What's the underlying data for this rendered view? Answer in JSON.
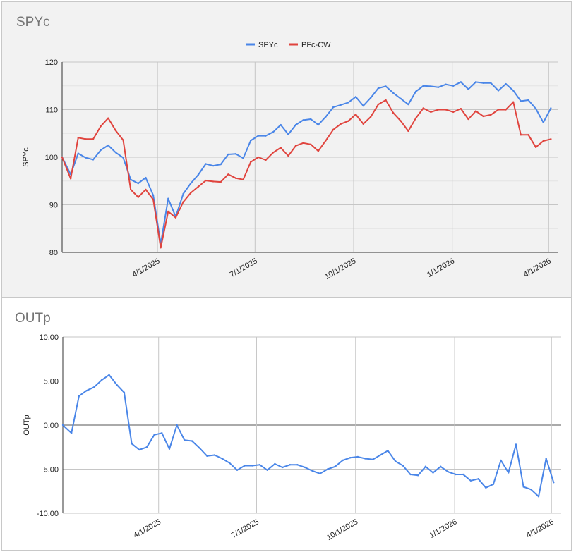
{
  "chart_data": [
    {
      "type": "line",
      "title": "SPYc",
      "ylabel": "SPYc",
      "ylim": [
        80,
        120
      ],
      "yticks": [
        80,
        90,
        100,
        110,
        120
      ],
      "xlim": [
        "2025-01-02",
        "2026-04-10"
      ],
      "xticks": [
        {
          "label": "4/1/2025",
          "date": "2025-04-01"
        },
        {
          "label": "7/1/2025",
          "date": "2025-07-01"
        },
        {
          "label": "10/1/2025",
          "date": "2025-10-01"
        },
        {
          "label": "1/1/2026",
          "date": "2026-01-01"
        },
        {
          "label": "4/1/2026",
          "date": "2026-04-01"
        }
      ],
      "grid": true,
      "legend_position": "top",
      "series": [
        {
          "name": "SPYc",
          "color": "#4a86e8",
          "points": [
            [
              "2025-01-02",
              100.0
            ],
            [
              "2025-01-10",
              96.4
            ],
            [
              "2025-01-17",
              100.8
            ],
            [
              "2025-01-24",
              99.9
            ],
            [
              "2025-01-31",
              99.5
            ],
            [
              "2025-02-07",
              101.5
            ],
            [
              "2025-02-14",
              102.5
            ],
            [
              "2025-02-21",
              101.0
            ],
            [
              "2025-02-28",
              99.9
            ],
            [
              "2025-03-07",
              95.3
            ],
            [
              "2025-03-14",
              94.5
            ],
            [
              "2025-03-21",
              95.7
            ],
            [
              "2025-03-28",
              92.0
            ],
            [
              "2025-04-04",
              81.8
            ],
            [
              "2025-04-11",
              91.3
            ],
            [
              "2025-04-18",
              87.5
            ],
            [
              "2025-04-25",
              92.3
            ],
            [
              "2025-05-02",
              94.5
            ],
            [
              "2025-05-09",
              96.3
            ],
            [
              "2025-05-16",
              98.6
            ],
            [
              "2025-05-23",
              98.2
            ],
            [
              "2025-05-30",
              98.5
            ],
            [
              "2025-06-06",
              100.6
            ],
            [
              "2025-06-13",
              100.7
            ],
            [
              "2025-06-20",
              99.8
            ],
            [
              "2025-06-27",
              103.5
            ],
            [
              "2025-07-04",
              104.5
            ],
            [
              "2025-07-11",
              104.5
            ],
            [
              "2025-07-18",
              105.3
            ],
            [
              "2025-07-25",
              106.8
            ],
            [
              "2025-08-01",
              104.8
            ],
            [
              "2025-08-08",
              106.8
            ],
            [
              "2025-08-15",
              107.8
            ],
            [
              "2025-08-22",
              108.0
            ],
            [
              "2025-08-29",
              106.8
            ],
            [
              "2025-09-05",
              108.5
            ],
            [
              "2025-09-12",
              110.5
            ],
            [
              "2025-09-19",
              111.0
            ],
            [
              "2025-09-26",
              111.5
            ],
            [
              "2025-10-03",
              112.7
            ],
            [
              "2025-10-10",
              110.8
            ],
            [
              "2025-10-17",
              112.5
            ],
            [
              "2025-10-24",
              114.5
            ],
            [
              "2025-10-31",
              114.9
            ],
            [
              "2025-11-07",
              113.5
            ],
            [
              "2025-11-14",
              112.3
            ],
            [
              "2025-11-21",
              111.1
            ],
            [
              "2025-11-28",
              113.8
            ],
            [
              "2025-12-05",
              115.0
            ],
            [
              "2025-12-12",
              114.9
            ],
            [
              "2025-12-19",
              114.7
            ],
            [
              "2025-12-26",
              115.3
            ],
            [
              "2026-01-02",
              115.0
            ],
            [
              "2026-01-09",
              115.8
            ],
            [
              "2026-01-16",
              114.3
            ],
            [
              "2026-01-23",
              115.8
            ],
            [
              "2026-01-30",
              115.6
            ],
            [
              "2026-02-06",
              115.6
            ],
            [
              "2026-02-13",
              114.0
            ],
            [
              "2026-02-20",
              115.4
            ],
            [
              "2026-02-27",
              114.0
            ],
            [
              "2026-03-06",
              111.8
            ],
            [
              "2026-03-13",
              112.0
            ],
            [
              "2026-03-20",
              110.2
            ],
            [
              "2026-03-27",
              107.3
            ],
            [
              "2026-04-03",
              110.3
            ]
          ]
        },
        {
          "name": "PFc-CW",
          "color": "#e0443e",
          "points": [
            [
              "2025-01-02",
              100.0
            ],
            [
              "2025-01-10",
              95.5
            ],
            [
              "2025-01-17",
              104.1
            ],
            [
              "2025-01-24",
              103.8
            ],
            [
              "2025-01-31",
              103.8
            ],
            [
              "2025-02-07",
              106.5
            ],
            [
              "2025-02-14",
              108.2
            ],
            [
              "2025-02-21",
              105.6
            ],
            [
              "2025-02-28",
              103.6
            ],
            [
              "2025-03-07",
              93.2
            ],
            [
              "2025-03-14",
              91.6
            ],
            [
              "2025-03-21",
              93.2
            ],
            [
              "2025-03-28",
              91.1
            ],
            [
              "2025-04-04",
              81.0
            ],
            [
              "2025-04-11",
              88.6
            ],
            [
              "2025-04-18",
              87.3
            ],
            [
              "2025-04-25",
              90.6
            ],
            [
              "2025-05-02",
              92.5
            ],
            [
              "2025-05-09",
              93.8
            ],
            [
              "2025-05-16",
              95.1
            ],
            [
              "2025-05-23",
              94.9
            ],
            [
              "2025-05-30",
              94.8
            ],
            [
              "2025-06-06",
              96.4
            ],
            [
              "2025-06-13",
              95.6
            ],
            [
              "2025-06-20",
              95.3
            ],
            [
              "2025-06-27",
              99.0
            ],
            [
              "2025-07-04",
              100.0
            ],
            [
              "2025-07-11",
              99.4
            ],
            [
              "2025-07-18",
              101.0
            ],
            [
              "2025-07-25",
              102.0
            ],
            [
              "2025-08-01",
              100.3
            ],
            [
              "2025-08-08",
              102.4
            ],
            [
              "2025-08-15",
              103.0
            ],
            [
              "2025-08-22",
              102.7
            ],
            [
              "2025-08-29",
              101.3
            ],
            [
              "2025-09-05",
              103.5
            ],
            [
              "2025-09-12",
              105.8
            ],
            [
              "2025-09-19",
              107.0
            ],
            [
              "2025-09-26",
              107.6
            ],
            [
              "2025-10-03",
              109.0
            ],
            [
              "2025-10-10",
              107.0
            ],
            [
              "2025-10-17",
              108.5
            ],
            [
              "2025-10-24",
              111.1
            ],
            [
              "2025-10-31",
              112.0
            ],
            [
              "2025-11-07",
              109.3
            ],
            [
              "2025-11-14",
              107.6
            ],
            [
              "2025-11-21",
              105.5
            ],
            [
              "2025-11-28",
              108.2
            ],
            [
              "2025-12-05",
              110.3
            ],
            [
              "2025-12-12",
              109.5
            ],
            [
              "2025-12-19",
              110.0
            ],
            [
              "2025-12-26",
              110.0
            ],
            [
              "2026-01-02",
              109.5
            ],
            [
              "2026-01-09",
              110.2
            ],
            [
              "2026-01-16",
              108.0
            ],
            [
              "2026-01-23",
              109.7
            ],
            [
              "2026-01-30",
              108.6
            ],
            [
              "2026-02-06",
              108.9
            ],
            [
              "2026-02-13",
              110.0
            ],
            [
              "2026-02-20",
              110.0
            ],
            [
              "2026-02-27",
              111.6
            ],
            [
              "2026-03-06",
              104.7
            ],
            [
              "2026-03-13",
              104.7
            ],
            [
              "2026-03-20",
              102.1
            ],
            [
              "2026-03-27",
              103.4
            ],
            [
              "2026-04-03",
              103.8
            ]
          ]
        }
      ]
    },
    {
      "type": "line",
      "title": "OUTp",
      "ylabel": "OUTp",
      "ylim": [
        -10,
        10
      ],
      "yticks": [
        -10,
        -5,
        0,
        5,
        10
      ],
      "ytick_labels": [
        "-10.00",
        "-5.00",
        "0.00",
        "5.00",
        "10.00"
      ],
      "xlim": [
        "2025-01-02",
        "2026-04-10"
      ],
      "xticks": [
        {
          "label": "4/1/2025",
          "date": "2025-04-01"
        },
        {
          "label": "7/1/2025",
          "date": "2025-07-01"
        },
        {
          "label": "10/1/2025",
          "date": "2025-10-01"
        },
        {
          "label": "1/1/2026",
          "date": "2026-01-01"
        },
        {
          "label": "4/1/2026",
          "date": "2026-04-01"
        }
      ],
      "grid": true,
      "series": [
        {
          "color": "#4a86e8",
          "points": [
            [
              "2025-01-02",
              0.0
            ],
            [
              "2025-01-10",
              -0.9
            ],
            [
              "2025-01-17",
              3.3
            ],
            [
              "2025-01-24",
              3.9
            ],
            [
              "2025-01-31",
              4.3
            ],
            [
              "2025-02-07",
              5.1
            ],
            [
              "2025-02-14",
              5.7
            ],
            [
              "2025-02-21",
              4.6
            ],
            [
              "2025-02-28",
              3.7
            ],
            [
              "2025-03-07",
              -2.1
            ],
            [
              "2025-03-14",
              -2.8
            ],
            [
              "2025-03-21",
              -2.5
            ],
            [
              "2025-03-28",
              -1.1
            ],
            [
              "2025-04-04",
              -0.9
            ],
            [
              "2025-04-11",
              -2.7
            ],
            [
              "2025-04-18",
              0.0
            ],
            [
              "2025-04-25",
              -1.7
            ],
            [
              "2025-05-02",
              -1.8
            ],
            [
              "2025-05-09",
              -2.6
            ],
            [
              "2025-05-16",
              -3.5
            ],
            [
              "2025-05-23",
              -3.4
            ],
            [
              "2025-05-30",
              -3.8
            ],
            [
              "2025-06-06",
              -4.3
            ],
            [
              "2025-06-13",
              -5.1
            ],
            [
              "2025-06-20",
              -4.6
            ],
            [
              "2025-06-27",
              -4.6
            ],
            [
              "2025-07-04",
              -4.5
            ],
            [
              "2025-07-11",
              -5.1
            ],
            [
              "2025-07-18",
              -4.4
            ],
            [
              "2025-07-25",
              -4.8
            ],
            [
              "2025-08-01",
              -4.5
            ],
            [
              "2025-08-08",
              -4.5
            ],
            [
              "2025-08-15",
              -4.8
            ],
            [
              "2025-08-22",
              -5.2
            ],
            [
              "2025-08-29",
              -5.5
            ],
            [
              "2025-09-05",
              -5.0
            ],
            [
              "2025-09-12",
              -4.7
            ],
            [
              "2025-09-19",
              -4.0
            ],
            [
              "2025-09-26",
              -3.7
            ],
            [
              "2025-10-03",
              -3.6
            ],
            [
              "2025-10-10",
              -3.8
            ],
            [
              "2025-10-17",
              -3.9
            ],
            [
              "2025-10-24",
              -3.4
            ],
            [
              "2025-10-31",
              -2.9
            ],
            [
              "2025-11-07",
              -4.1
            ],
            [
              "2025-11-14",
              -4.6
            ],
            [
              "2025-11-21",
              -5.6
            ],
            [
              "2025-11-28",
              -5.7
            ],
            [
              "2025-12-05",
              -4.7
            ],
            [
              "2025-12-12",
              -5.4
            ],
            [
              "2025-12-19",
              -4.7
            ],
            [
              "2025-12-26",
              -5.3
            ],
            [
              "2026-01-02",
              -5.6
            ],
            [
              "2026-01-09",
              -5.6
            ],
            [
              "2026-01-16",
              -6.3
            ],
            [
              "2026-01-23",
              -6.1
            ],
            [
              "2026-01-30",
              -7.1
            ],
            [
              "2026-02-06",
              -6.7
            ],
            [
              "2026-02-13",
              -4.0
            ],
            [
              "2026-02-20",
              -5.4
            ],
            [
              "2026-02-27",
              -2.2
            ],
            [
              "2026-03-06",
              -7.0
            ],
            [
              "2026-03-13",
              -7.3
            ],
            [
              "2026-03-20",
              -8.1
            ],
            [
              "2026-03-27",
              -3.8
            ],
            [
              "2026-04-03",
              -6.5
            ]
          ]
        }
      ]
    }
  ]
}
